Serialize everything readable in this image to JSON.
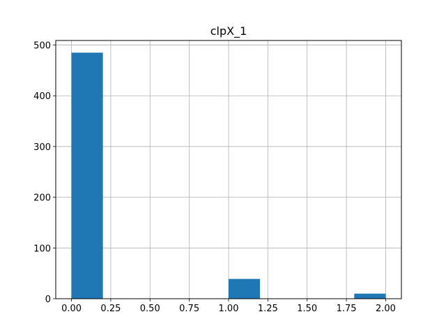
{
  "chart_data": {
    "type": "bar",
    "subtype": "histogram",
    "title": "clpX_1",
    "xlabel": "",
    "ylabel": "",
    "xlim": [
      -0.1,
      2.1
    ],
    "ylim": [
      0,
      509
    ],
    "grid": true,
    "bar_color": "#1f77b4",
    "bins": [
      {
        "x0": 0.0,
        "x1": 0.2,
        "count": 485
      },
      {
        "x0": 0.2,
        "x1": 0.4,
        "count": 0
      },
      {
        "x0": 0.4,
        "x1": 0.6,
        "count": 0
      },
      {
        "x0": 0.6,
        "x1": 0.8,
        "count": 0
      },
      {
        "x0": 0.8,
        "x1": 1.0,
        "count": 0
      },
      {
        "x0": 1.0,
        "x1": 1.2,
        "count": 39
      },
      {
        "x0": 1.2,
        "x1": 1.4,
        "count": 0
      },
      {
        "x0": 1.4,
        "x1": 1.6,
        "count": 0
      },
      {
        "x0": 1.6,
        "x1": 1.8,
        "count": 0
      },
      {
        "x0": 1.8,
        "x1": 2.0,
        "count": 10
      }
    ],
    "x_ticks": [
      {
        "value": 0.0,
        "label": "0.00"
      },
      {
        "value": 0.25,
        "label": "0.25"
      },
      {
        "value": 0.5,
        "label": "0.50"
      },
      {
        "value": 0.75,
        "label": "0.75"
      },
      {
        "value": 1.0,
        "label": "1.00"
      },
      {
        "value": 1.25,
        "label": "1.25"
      },
      {
        "value": 1.5,
        "label": "1.50"
      },
      {
        "value": 1.75,
        "label": "1.75"
      },
      {
        "value": 2.0,
        "label": "2.00"
      }
    ],
    "y_ticks": [
      {
        "value": 0,
        "label": "0"
      },
      {
        "value": 100,
        "label": "100"
      },
      {
        "value": 200,
        "label": "200"
      },
      {
        "value": 300,
        "label": "300"
      },
      {
        "value": 400,
        "label": "400"
      },
      {
        "value": 500,
        "label": "500"
      }
    ]
  }
}
